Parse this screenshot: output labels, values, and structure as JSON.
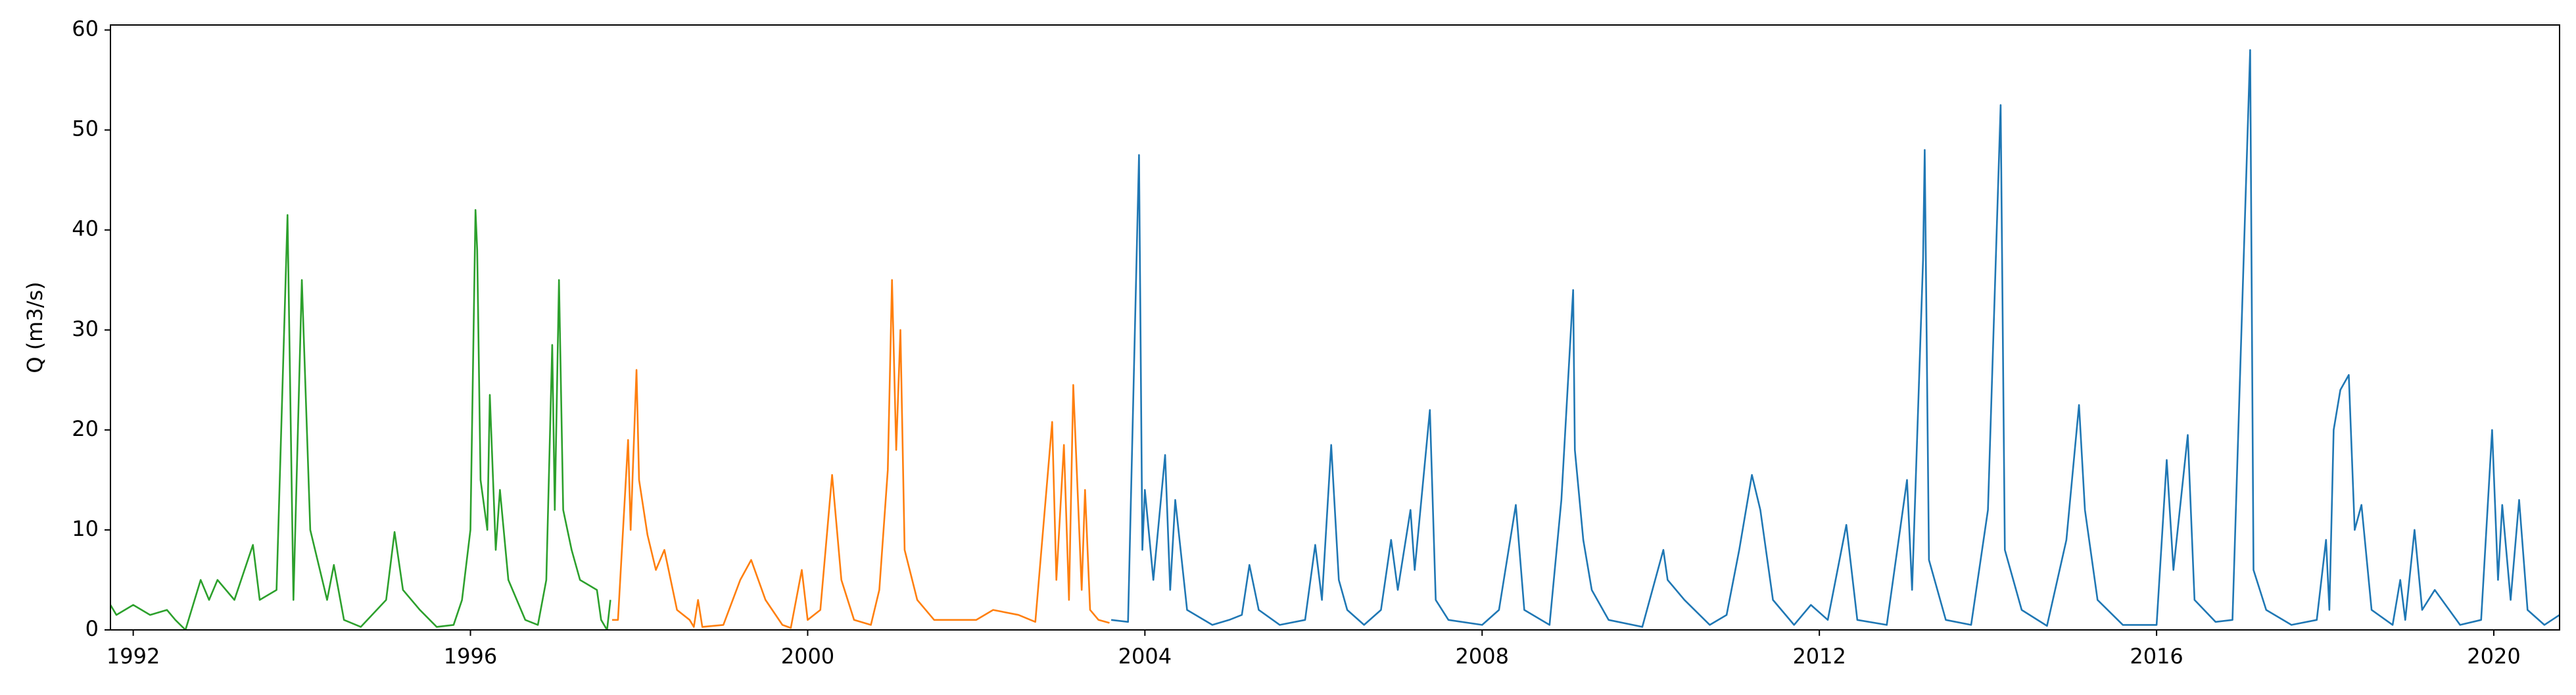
{
  "chart_data": {
    "type": "line",
    "y_label": "Q (m3/s)",
    "xlim": [
      1991.73,
      2020.78
    ],
    "xticks": [
      1992,
      1996,
      2000,
      2004,
      2008,
      2012,
      2016,
      2020
    ],
    "ylim": [
      0,
      60.5
    ],
    "yticks": [
      0,
      10,
      20,
      30,
      40,
      50,
      60
    ],
    "grid": false,
    "series": [
      {
        "color": "#2ca02c",
        "x": [
          1991.73,
          1991.8,
          1992.0,
          1992.2,
          1992.4,
          1992.5,
          1992.62,
          1992.8,
          1992.9,
          1993.0,
          1993.2,
          1993.42,
          1993.5,
          1993.7,
          1993.83,
          1993.9,
          1994.0,
          1994.1,
          1994.3,
          1994.38,
          1994.5,
          1994.7,
          1995.0,
          1995.1,
          1995.2,
          1995.4,
          1995.6,
          1995.8,
          1995.9,
          1996.0,
          1996.06,
          1996.08,
          1996.12,
          1996.2,
          1996.23,
          1996.3,
          1996.35,
          1996.45,
          1996.65,
          1996.8,
          1996.9,
          1996.97,
          1997.0,
          1997.05,
          1997.1,
          1997.2,
          1997.3,
          1997.5,
          1997.55,
          1997.62,
          1997.66
        ],
        "values": [
          2.5,
          1.5,
          2.5,
          1.5,
          2,
          1,
          0,
          5,
          3,
          5,
          3,
          8.5,
          3,
          4,
          41.5,
          3,
          35,
          10,
          3,
          6.5,
          1,
          0.3,
          3,
          9.8,
          4,
          2,
          0.3,
          0.5,
          3,
          10,
          42,
          38,
          15,
          10,
          23.5,
          8,
          14,
          5,
          1,
          0.5,
          5,
          28.5,
          12,
          35,
          12,
          8,
          5,
          4,
          1,
          0,
          3
        ]
      },
      {
        "color": "#ff7f0e",
        "x": [
          1997.68,
          1997.75,
          1997.87,
          1997.9,
          1997.97,
          1998.0,
          1998.1,
          1998.2,
          1998.3,
          1998.45,
          1998.6,
          1998.65,
          1998.7,
          1998.75,
          1999.0,
          1999.2,
          1999.33,
          1999.5,
          1999.7,
          1999.8,
          1999.93,
          2000.0,
          2000.15,
          2000.29,
          2000.4,
          2000.55,
          2000.75,
          2000.85,
          2000.95,
          2001.0,
          2001.05,
          2001.1,
          2001.15,
          2001.3,
          2001.5,
          2002.0,
          2002.2,
          2002.5,
          2002.7,
          2002.9,
          2002.95,
          2003.04,
          2003.1,
          2003.15,
          2003.25,
          2003.29,
          2003.35,
          2003.45,
          2003.58
        ],
        "values": [
          1,
          1,
          19,
          10,
          26,
          15,
          9.5,
          6,
          8,
          2,
          1,
          0.3,
          3,
          0.3,
          0.5,
          5,
          7,
          3,
          0.5,
          0.2,
          6,
          1,
          2,
          15.5,
          5,
          1,
          0.5,
          4,
          16,
          35,
          18,
          30,
          8,
          3,
          1,
          1,
          2,
          1.5,
          0.8,
          20.8,
          5,
          18.5,
          3,
          24.5,
          4,
          14,
          2,
          1,
          0.7
        ]
      },
      {
        "color": "#1f77b4",
        "x": [
          2003.6,
          2003.8,
          2003.89,
          2003.93,
          2003.97,
          2004.0,
          2004.1,
          2004.24,
          2004.3,
          2004.36,
          2004.5,
          2004.8,
          2005.0,
          2005.15,
          2005.24,
          2005.35,
          2005.6,
          2005.9,
          2006.02,
          2006.1,
          2006.21,
          2006.3,
          2006.4,
          2006.6,
          2006.8,
          2006.92,
          2007.0,
          2007.15,
          2007.2,
          2007.38,
          2007.45,
          2007.6,
          2008.0,
          2008.2,
          2008.4,
          2008.5,
          2008.8,
          2008.94,
          2009.08,
          2009.1,
          2009.2,
          2009.3,
          2009.5,
          2009.9,
          2010.15,
          2010.2,
          2010.4,
          2010.7,
          2010.9,
          2011.05,
          2011.2,
          2011.3,
          2011.45,
          2011.7,
          2011.9,
          2012.1,
          2012.32,
          2012.45,
          2012.8,
          2013.04,
          2013.1,
          2013.23,
          2013.25,
          2013.3,
          2013.5,
          2013.8,
          2014.0,
          2014.15,
          2014.2,
          2014.4,
          2014.7,
          2014.93,
          2015.08,
          2015.15,
          2015.3,
          2015.6,
          2016.0,
          2016.12,
          2016.2,
          2016.37,
          2016.45,
          2016.7,
          2016.9,
          2017.11,
          2017.15,
          2017.3,
          2017.6,
          2017.9,
          2018.01,
          2018.05,
          2018.1,
          2018.18,
          2018.28,
          2018.35,
          2018.43,
          2018.55,
          2018.8,
          2018.89,
          2018.95,
          2019.06,
          2019.15,
          2019.3,
          2019.6,
          2019.85,
          2019.98,
          2020.05,
          2020.1,
          2020.2,
          2020.3,
          2020.4,
          2020.6,
          2020.78
        ],
        "values": [
          1,
          0.8,
          33,
          47.5,
          8,
          14,
          5,
          17.5,
          4,
          13,
          2,
          0.5,
          1,
          1.5,
          6.5,
          2,
          0.5,
          1,
          8.5,
          3,
          18.5,
          5,
          2,
          0.5,
          2,
          9,
          4,
          12,
          6,
          22,
          3,
          1,
          0.5,
          2,
          12.5,
          2,
          0.5,
          13,
          34,
          18,
          9,
          4,
          1,
          0.3,
          8,
          5,
          3,
          0.5,
          1.5,
          8,
          15.5,
          12,
          3,
          0.5,
          2.5,
          1,
          10.5,
          1,
          0.5,
          15,
          4,
          37,
          48,
          7,
          1,
          0.5,
          12,
          52.5,
          8,
          2,
          0.4,
          9,
          22.5,
          12,
          3,
          0.5,
          0.5,
          17,
          6,
          19.5,
          3,
          0.8,
          1,
          58,
          6,
          2,
          0.5,
          1,
          9,
          2,
          20,
          24,
          25.5,
          10,
          12.5,
          2,
          0.5,
          5,
          1,
          10,
          2,
          4,
          0.5,
          1,
          20,
          5,
          12.5,
          3,
          13,
          2,
          0.5,
          1.5
        ]
      }
    ]
  }
}
